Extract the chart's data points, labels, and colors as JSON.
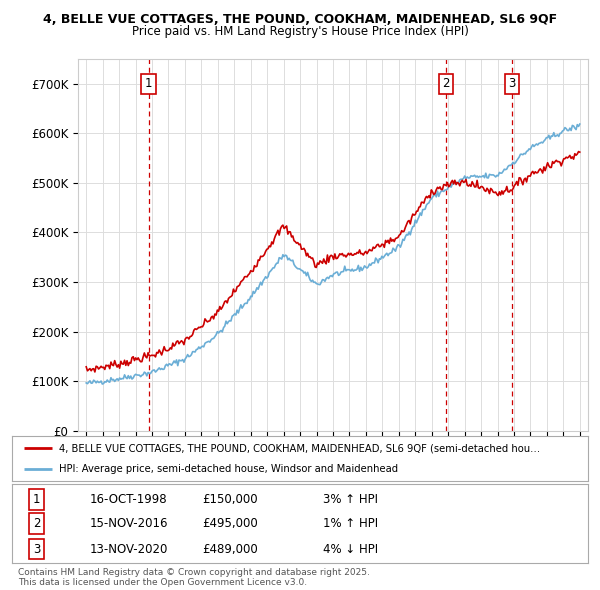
{
  "title1": "4, BELLE VUE COTTAGES, THE POUND, COOKHAM, MAIDENHEAD, SL6 9QF",
  "title2": "Price paid vs. HM Land Registry's House Price Index (HPI)",
  "ylim": [
    0,
    750000
  ],
  "yticks": [
    0,
    100000,
    200000,
    300000,
    400000,
    500000,
    600000,
    700000
  ],
  "ytick_labels": [
    "£0",
    "£100K",
    "£200K",
    "£300K",
    "£400K",
    "£500K",
    "£600K",
    "£700K"
  ],
  "sale_dates": [
    1998.79,
    2016.88,
    2020.88
  ],
  "sale_prices": [
    150000,
    495000,
    489000
  ],
  "sale_labels": [
    "1",
    "2",
    "3"
  ],
  "hpi_color": "#6baed6",
  "price_color": "#cc0000",
  "vline_color": "#cc0000",
  "grid_color": "#dddddd",
  "background_color": "#ffffff",
  "legend_entries": [
    "4, BELLE VUE COTTAGES, THE POUND, COOKHAM, MAIDENHEAD, SL6 9QF (semi-detached hou…",
    "HPI: Average price, semi-detached house, Windsor and Maidenhead"
  ],
  "table_rows": [
    [
      "1",
      "16-OCT-1998",
      "£150,000",
      "3% ↑ HPI"
    ],
    [
      "2",
      "15-NOV-2016",
      "£495,000",
      "1% ↑ HPI"
    ],
    [
      "3",
      "13-NOV-2020",
      "£489,000",
      "4% ↓ HPI"
    ]
  ],
  "footnote": "Contains HM Land Registry data © Crown copyright and database right 2025.\nThis data is licensed under the Open Government Licence v3.0.",
  "xmin": 1994.5,
  "xmax": 2025.5
}
